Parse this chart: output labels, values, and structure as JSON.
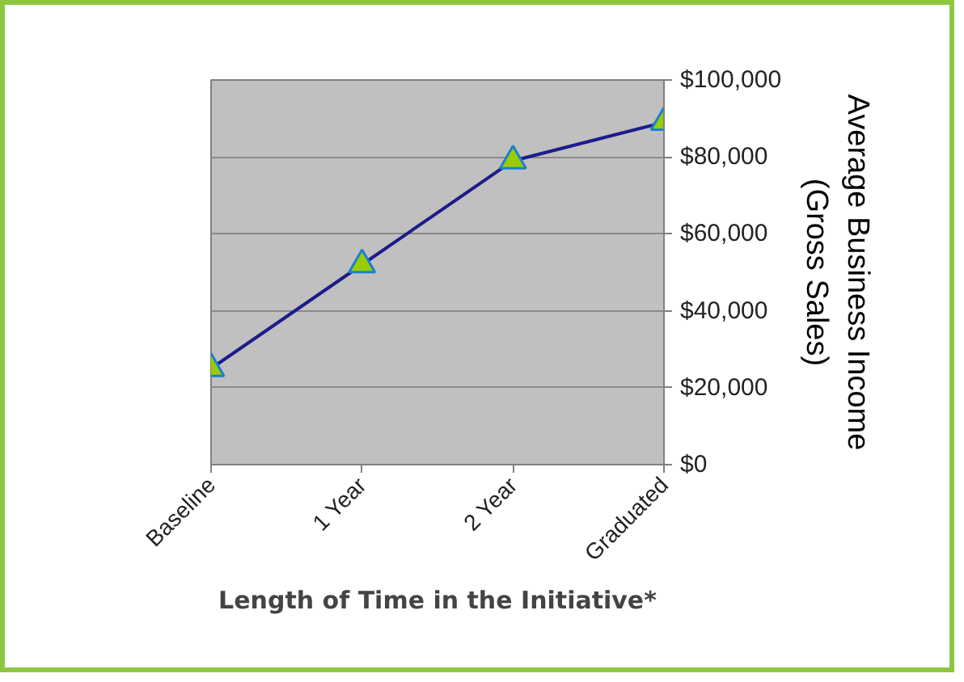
{
  "chart_data": {
    "type": "line",
    "xlabel": "Length of Time in the Initiative*",
    "ylabel": "Average Business Income\n(Gross Sales)",
    "categories": [
      "Baseline",
      "1 Year",
      "2 Year",
      "Graduated"
    ],
    "series": [
      {
        "color": "#1c1c8a",
        "values": [
          25000,
          52000,
          79000,
          89000
        ]
      }
    ],
    "marker": "triangle",
    "grid": "y",
    "ylim": [
      0,
      100000
    ],
    "yticks": [
      {
        "value": 0,
        "label": "$0"
      },
      {
        "value": 20000,
        "label": "$20,000"
      },
      {
        "value": 40000,
        "label": "$40,000"
      },
      {
        "value": 60000,
        "label": "$60,000"
      },
      {
        "value": 80000,
        "label": "$80,000"
      },
      {
        "value": 100000,
        "label": "$100,000"
      }
    ]
  }
}
